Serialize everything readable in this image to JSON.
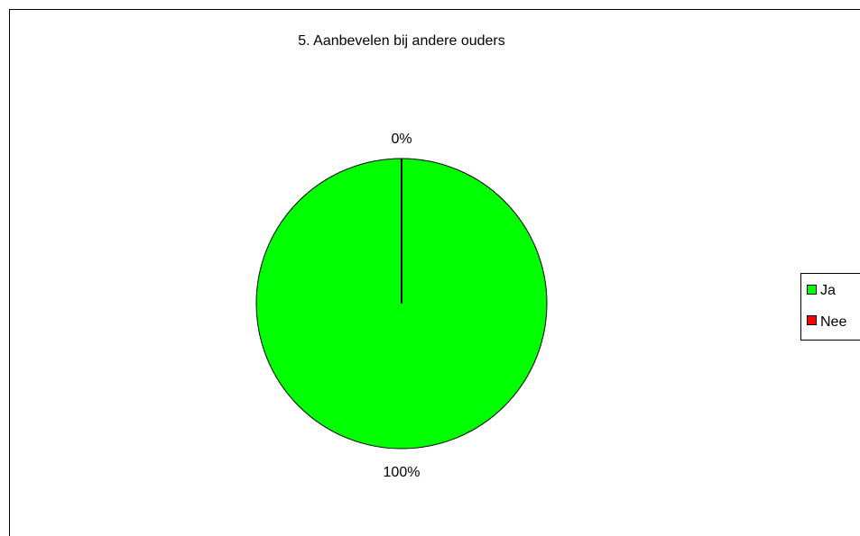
{
  "chart_data": {
    "type": "pie",
    "title": "5. Aanbevelen bij andere ouders",
    "categories": [
      "Ja",
      "Nee"
    ],
    "values": [
      100,
      0
    ],
    "data_labels": [
      "100%",
      "0%"
    ],
    "colors": [
      "#00ff00",
      "#ff0000"
    ],
    "legend": {
      "position": "right",
      "entries": [
        "Ja",
        "Nee"
      ]
    }
  }
}
